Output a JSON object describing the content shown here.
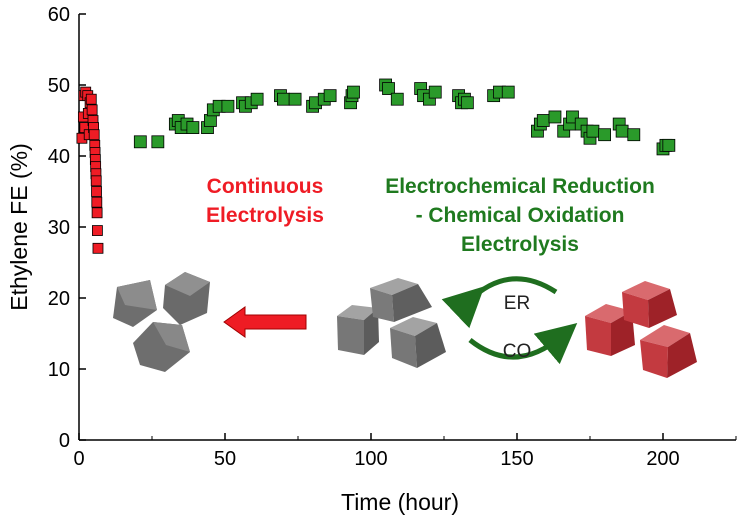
{
  "chart_data": {
    "type": "scatter",
    "title": "",
    "xlabel": "Time (hour)",
    "ylabel": "Ethylene FE (%)",
    "xlim": [
      0,
      225
    ],
    "ylim": [
      0,
      60
    ],
    "xticks": [
      0,
      50,
      100,
      150,
      200
    ],
    "yticks": [
      0,
      10,
      20,
      30,
      40,
      50,
      60
    ],
    "grid": false,
    "legend": "none",
    "series": [
      {
        "color": "#ef1c25",
        "marker": "square",
        "points": [
          [
            1.0,
            42.5
          ],
          [
            1.5,
            45.5
          ],
          [
            1.7,
            48.5
          ],
          [
            2.0,
            44.0
          ],
          [
            2.3,
            49.0
          ],
          [
            3.0,
            48.5
          ],
          [
            3.2,
            46.0
          ],
          [
            3.5,
            43.0
          ],
          [
            3.8,
            47.5
          ],
          [
            4.2,
            48.0
          ],
          [
            4.5,
            46.5
          ],
          [
            4.8,
            45.0
          ],
          [
            5.0,
            44.0
          ],
          [
            5.2,
            43.0
          ],
          [
            5.4,
            41.5
          ],
          [
            5.5,
            40.5
          ],
          [
            5.6,
            39.5
          ],
          [
            5.7,
            38.5
          ],
          [
            5.8,
            37.5
          ],
          [
            5.9,
            36.5
          ],
          [
            6.0,
            35.0
          ],
          [
            6.1,
            33.5
          ],
          [
            6.2,
            32.0
          ],
          [
            6.3,
            29.5
          ],
          [
            6.5,
            27.0
          ]
        ]
      },
      {
        "color": "#2a9a2a",
        "marker": "square",
        "points": [
          [
            21,
            42.0
          ],
          [
            27,
            42.0
          ],
          [
            33,
            44.5
          ],
          [
            34,
            45.0
          ],
          [
            35,
            44.0
          ],
          [
            37,
            44.5
          ],
          [
            39,
            44.0
          ],
          [
            44,
            44.0
          ],
          [
            45,
            45.0
          ],
          [
            46,
            46.5
          ],
          [
            48,
            47.0
          ],
          [
            51,
            47.0
          ],
          [
            56,
            47.5
          ],
          [
            57,
            47.0
          ],
          [
            59,
            47.5
          ],
          [
            61,
            48.0
          ],
          [
            69,
            48.5
          ],
          [
            70,
            48.0
          ],
          [
            74,
            48.0
          ],
          [
            80,
            47.0
          ],
          [
            81,
            47.5
          ],
          [
            84,
            48.0
          ],
          [
            86,
            48.5
          ],
          [
            93,
            47.5
          ],
          [
            93.5,
            48.5
          ],
          [
            94,
            49.0
          ],
          [
            105,
            50.0
          ],
          [
            106,
            49.5
          ],
          [
            109,
            48.0
          ],
          [
            117,
            49.5
          ],
          [
            118,
            48.5
          ],
          [
            120,
            48.0
          ],
          [
            122,
            49.0
          ],
          [
            130,
            48.5
          ],
          [
            131,
            47.5
          ],
          [
            132,
            48.0
          ],
          [
            133,
            47.5
          ],
          [
            142,
            48.5
          ],
          [
            144,
            49.0
          ],
          [
            147,
            49.0
          ],
          [
            157,
            43.5
          ],
          [
            158,
            44.5
          ],
          [
            159,
            45.0
          ],
          [
            163,
            45.5
          ],
          [
            166,
            43.5
          ],
          [
            168,
            44.5
          ],
          [
            169,
            45.5
          ],
          [
            172,
            44.5
          ],
          [
            174,
            43.5
          ],
          [
            175,
            42.5
          ],
          [
            176,
            43.5
          ],
          [
            180,
            43.0
          ],
          [
            185,
            44.5
          ],
          [
            186,
            43.5
          ],
          [
            190,
            43.0
          ],
          [
            200,
            41.0
          ],
          [
            201,
            41.5
          ],
          [
            202,
            41.5
          ]
        ]
      }
    ],
    "annotations": {
      "continuous": [
        "Continuous",
        "Electrolysis"
      ],
      "ercd": [
        "Electrochemical Reduction",
        "- Chemical Oxidation",
        "Electrolysis"
      ],
      "cycle_top": "ER",
      "cycle_bottom": "CO"
    }
  }
}
